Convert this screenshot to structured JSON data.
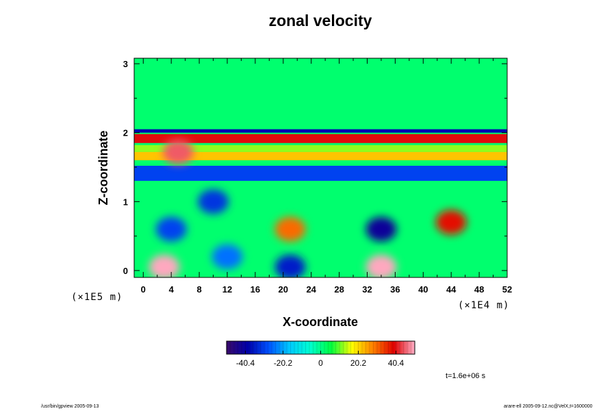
{
  "chart_data": {
    "type": "heatmap",
    "title": "zonal velocity",
    "xlabel": "X-coordinate",
    "ylabel": "Z-coordinate",
    "x_scale_label": "(×1E4 m)",
    "y_scale_label": "(×1E5 m)",
    "xlim": [
      -1.3,
      52
    ],
    "ylim": [
      -0.1,
      3.08
    ],
    "x_ticks": [
      0,
      4,
      8,
      12,
      16,
      20,
      24,
      28,
      32,
      36,
      40,
      44,
      48,
      52
    ],
    "y_ticks": [
      0,
      1,
      2,
      3
    ],
    "colorbar": {
      "range": [
        -50.5,
        50.5
      ],
      "ticks": [
        -40.4,
        -20.2,
        0,
        20.2,
        40.4
      ],
      "tick_labels": [
        "-40.4",
        "-20.2",
        "0",
        "20.2",
        "40.4"
      ],
      "colors": [
        "#3a0a6a",
        "#0000a8",
        "#0050ff",
        "#00c8ff",
        "#00ffd0",
        "#00ff40",
        "#ffff00",
        "#ff8000",
        "#e00000",
        "#ffb0c8"
      ]
    },
    "bands": [
      {
        "z_range": [
          2.05,
          3.08
        ],
        "value": 2
      },
      {
        "z_range": [
          2.0,
          2.05
        ],
        "value": -38
      },
      {
        "z_range": [
          1.85,
          1.98
        ],
        "value": 40
      },
      {
        "z_range": [
          1.72,
          1.82
        ],
        "value": 12
      },
      {
        "z_range": [
          1.6,
          1.72
        ],
        "value": 22
      },
      {
        "z_range": [
          1.3,
          1.52
        ],
        "value": -30
      },
      {
        "z_range": [
          -0.1,
          1.3
        ],
        "value": 2
      }
    ],
    "features": [
      {
        "x": 5,
        "z": 1.72,
        "value": 45
      },
      {
        "x": 21,
        "z": 0.6,
        "value": 30
      },
      {
        "x": 34,
        "z": 0.6,
        "value": -42
      },
      {
        "x": 4,
        "z": 0.6,
        "value": -30
      },
      {
        "x": 10,
        "z": 1.0,
        "value": -32
      },
      {
        "x": 3,
        "z": 0.05,
        "value": 50
      },
      {
        "x": 34,
        "z": 0.05,
        "value": 50
      },
      {
        "x": 21,
        "z": 0.05,
        "value": -35
      },
      {
        "x": 44,
        "z": 0.7,
        "value": 38
      },
      {
        "x": 12,
        "z": 0.2,
        "value": -25
      }
    ],
    "time_label": "t=1.6e+06 s"
  },
  "footer": {
    "left": "/usr/bin/gpview 2005-09-13",
    "right": "arare-ell 2005-09-12.nc@VelX,t=1600000"
  },
  "colors": {
    "frame": "#000000",
    "background": "#ffffff",
    "field_base": "#00ff30"
  }
}
